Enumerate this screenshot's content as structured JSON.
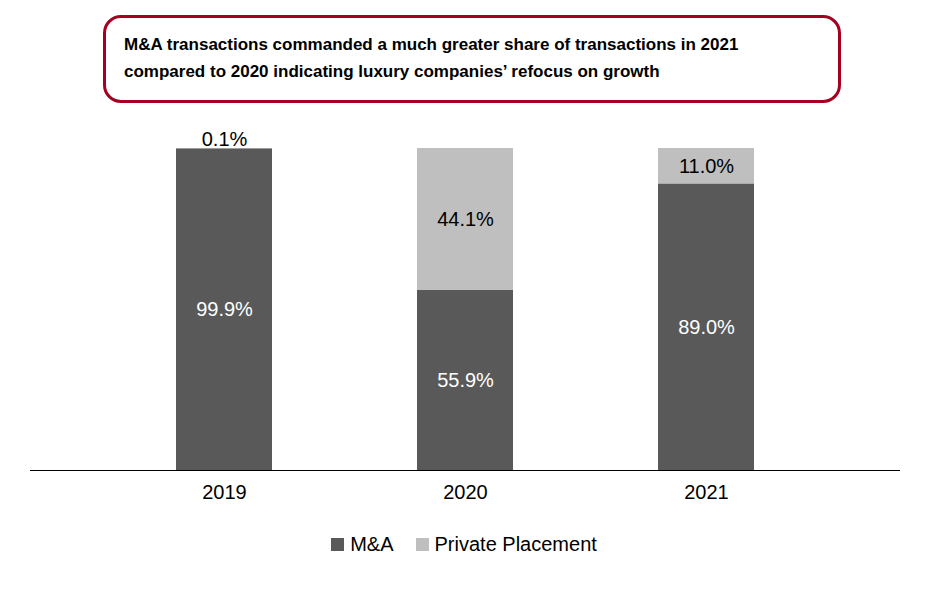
{
  "chart_data": {
    "type": "bar",
    "title": "M&A transactions commanded a much greater share of transactions in 2021 compared to 2020 indicating luxury companies’ refocus on growth",
    "categories": [
      "2019",
      "2020",
      "2021"
    ],
    "series": [
      {
        "name": "M&A",
        "color": "#595959",
        "values": [
          99.9,
          55.9,
          89.0
        ],
        "value_labels": [
          "99.9%",
          "55.9%",
          "89.0%"
        ]
      },
      {
        "name": "Private Placement",
        "color": "#bfbfbf",
        "values": [
          0.1,
          44.1,
          11.0
        ],
        "value_labels": [
          "0.1%",
          "44.1%",
          "11.0%"
        ]
      }
    ],
    "stacked": true,
    "data_labels": true,
    "ylim": [
      0,
      100
    ],
    "tick_labels": "x",
    "legend": "bottom"
  }
}
